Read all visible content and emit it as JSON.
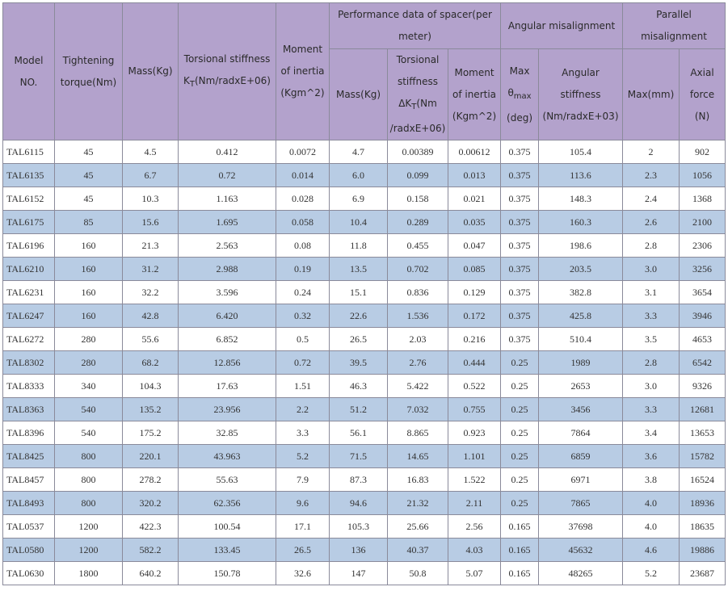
{
  "header": {
    "model": "Model NO.",
    "torque": "Tightening torque(Nm)",
    "mass": "Mass(Kg)",
    "torsional_pre": "Torsional stiffness K",
    "torsional_sub": "T",
    "torsional_post": "(Nm/radxE+06)",
    "moment": "Moment of inertia (Kgm^2)",
    "spacer_group": "Performance data of spacer(per meter)",
    "angular_group": "Angular misalignment",
    "parallel_group": "Parallel misalignment",
    "spacer_mass": "Mass(Kg)",
    "spacer_torsional_pre": "Torsional stiffness ΔK",
    "spacer_torsional_sub": "T",
    "spacer_torsional_post": "(Nm /radxE+06)",
    "spacer_moment": "Moment of inertia (Kgm^2)",
    "max_theta_pre": "Max θ",
    "max_theta_sub": "max",
    "max_theta_post": "(deg)",
    "angular_stiffness": "Angular stiffness (Nm/radxE+03)",
    "parallel_max": "Max(mm)",
    "axial_force": "Axial force (N)"
  },
  "rows": [
    [
      "TAL6115",
      "45",
      "4.5",
      "0.412",
      "0.0072",
      "4.7",
      "0.00389",
      "0.00612",
      "0.375",
      "105.4",
      "2",
      "902"
    ],
    [
      "TAL6135",
      "45",
      "6.7",
      "0.72",
      "0.014",
      "6.0",
      "0.099",
      "0.013",
      "0.375",
      "113.6",
      "2.3",
      "1056"
    ],
    [
      "TAL6152",
      "45",
      "10.3",
      "1.163",
      "0.028",
      "6.9",
      "0.158",
      "0.021",
      "0.375",
      "148.3",
      "2.4",
      "1368"
    ],
    [
      "TAL6175",
      "85",
      "15.6",
      "1.695",
      "0.058",
      "10.4",
      "0.289",
      "0.035",
      "0.375",
      "160.3",
      "2.6",
      "2100"
    ],
    [
      "TAL6196",
      "160",
      "21.3",
      "2.563",
      "0.08",
      "11.8",
      "0.455",
      "0.047",
      "0.375",
      "198.6",
      "2.8",
      "2306"
    ],
    [
      "TAL6210",
      "160",
      "31.2",
      "2.988",
      "0.19",
      "13.5",
      "0.702",
      "0.085",
      "0.375",
      "203.5",
      "3.0",
      "3256"
    ],
    [
      "TAL6231",
      "160",
      "32.2",
      "3.596",
      "0.24",
      "15.1",
      "0.836",
      "0.129",
      "0.375",
      "382.8",
      "3.1",
      "3654"
    ],
    [
      "TAL6247",
      "160",
      "42.8",
      "6.420",
      "0.32",
      "22.6",
      "1.536",
      "0.172",
      "0.375",
      "425.8",
      "3.3",
      "3946"
    ],
    [
      "TAL6272",
      "280",
      "55.6",
      "6.852",
      "0.5",
      "26.5",
      "2.03",
      "0.216",
      "0.375",
      "510.4",
      "3.5",
      "4653"
    ],
    [
      "TAL8302",
      "280",
      "68.2",
      "12.856",
      "0.72",
      "39.5",
      "2.76",
      "0.444",
      "0.25",
      "1989",
      "2.8",
      "6542"
    ],
    [
      "TAL8333",
      "340",
      "104.3",
      "17.63",
      "1.51",
      "46.3",
      "5.422",
      "0.522",
      "0.25",
      "2653",
      "3.0",
      "9326"
    ],
    [
      "TAL8363",
      "540",
      "135.2",
      "23.956",
      "2.2",
      "51.2",
      "7.032",
      "0.755",
      "0.25",
      "3456",
      "3.3",
      "12681"
    ],
    [
      "TAL8396",
      "540",
      "175.2",
      "32.85",
      "3.3",
      "56.1",
      "8.865",
      "0.923",
      "0.25",
      "7864",
      "3.4",
      "13653"
    ],
    [
      "TAL8425",
      "800",
      "220.1",
      "43.963",
      "5.2",
      "71.5",
      "14.65",
      "1.101",
      "0.25",
      "6859",
      "3.6",
      "15782"
    ],
    [
      "TAL8457",
      "800",
      "278.2",
      "55.63",
      "7.9",
      "87.3",
      "16.83",
      "1.522",
      "0.25",
      "6971",
      "3.8",
      "16524"
    ],
    [
      "TAL8493",
      "800",
      "320.2",
      "62.356",
      "9.6",
      "94.6",
      "21.32",
      "2.11",
      "0.25",
      "7865",
      "4.0",
      "18936"
    ],
    [
      "TAL0537",
      "1200",
      "422.3",
      "100.54",
      "17.1",
      "105.3",
      "25.66",
      "2.56",
      "0.165",
      "37698",
      "4.0",
      "18635"
    ],
    [
      "TAL0580",
      "1200",
      "582.2",
      "133.45",
      "26.5",
      "136",
      "40.37",
      "4.03",
      "0.165",
      "45632",
      "4.6",
      "19886"
    ],
    [
      "TAL0630",
      "1800",
      "640.2",
      "150.78",
      "32.6",
      "147",
      "50.8",
      "5.07",
      "0.165",
      "48265",
      "5.2",
      "23687"
    ]
  ]
}
